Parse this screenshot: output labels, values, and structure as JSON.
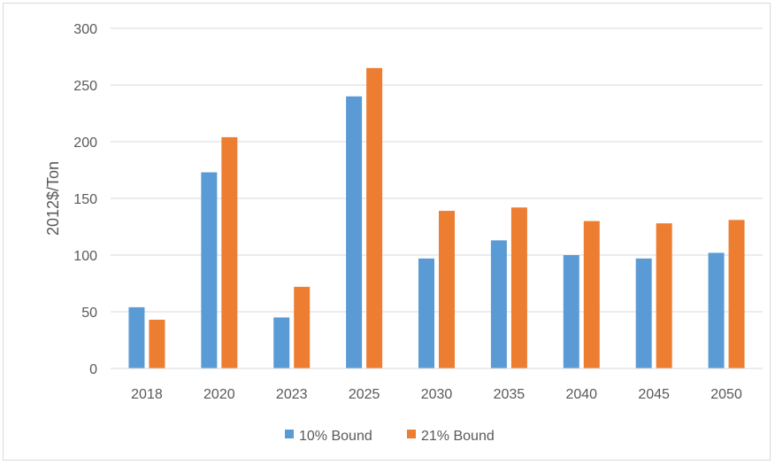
{
  "chart_data": {
    "type": "bar",
    "title": "",
    "xlabel": "",
    "ylabel": "2012$/Ton",
    "categories": [
      "2018",
      "2020",
      "2023",
      "2025",
      "2030",
      "2035",
      "2040",
      "2045",
      "2050"
    ],
    "series": [
      {
        "name": "10% Bound",
        "color": "#5b9bd5",
        "values": [
          54,
          173,
          45,
          240,
          97,
          113,
          100,
          97,
          102
        ]
      },
      {
        "name": "21% Bound",
        "color": "#ed7d31",
        "values": [
          43,
          204,
          72,
          265,
          139,
          142,
          130,
          128,
          131
        ]
      }
    ],
    "ylim": [
      0,
      300
    ],
    "yticks": [
      "0",
      "50",
      "100",
      "150",
      "200",
      "250",
      "300"
    ],
    "grid": true,
    "legend_position": "bottom"
  }
}
